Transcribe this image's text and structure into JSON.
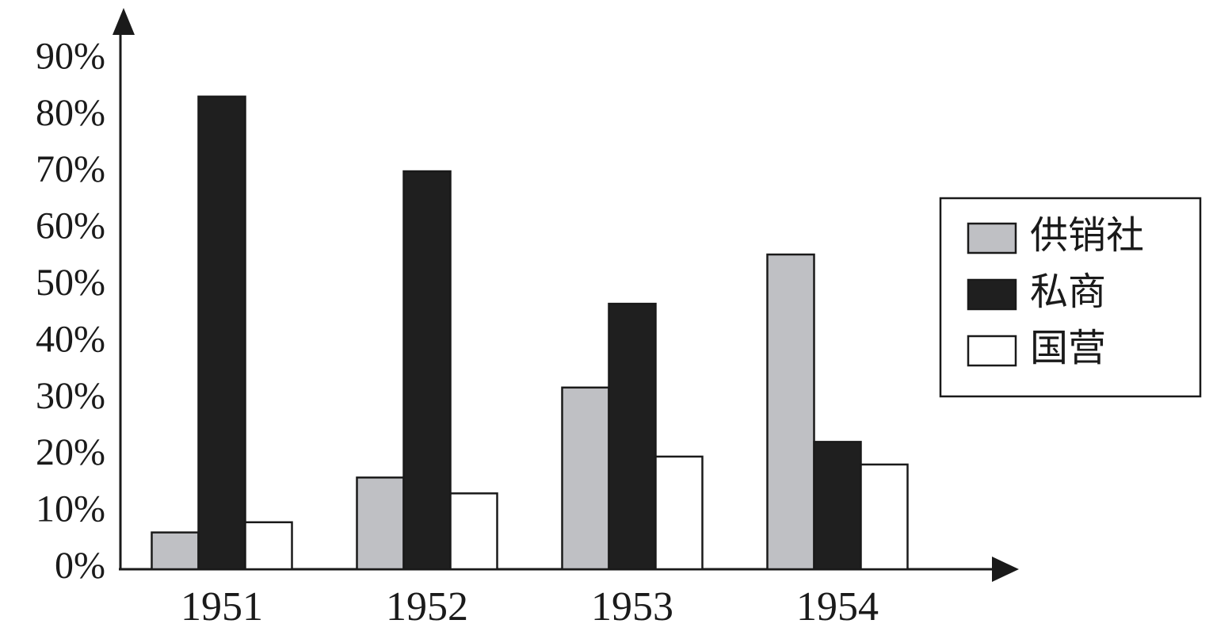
{
  "chart_data": {
    "type": "bar",
    "categories": [
      "1951",
      "1952",
      "1953",
      "1954"
    ],
    "series": [
      {
        "name": "供销社",
        "color": "#bfc0c4",
        "values": [
          6.5,
          16.2,
          32.1,
          55.6
        ]
      },
      {
        "name": "私商",
        "color": "#1f1f1f",
        "values": [
          83.5,
          70.3,
          46.9,
          22.5
        ]
      },
      {
        "name": "国营",
        "color": "#ffffff",
        "values": [
          8.3,
          13.4,
          19.9,
          18.5
        ]
      }
    ],
    "ylim": [
      0,
      98.5
    ],
    "yticks": [
      {
        "value": 0,
        "label": "0%"
      },
      {
        "value": 10,
        "label": "10%"
      },
      {
        "value": 20,
        "label": "20%"
      },
      {
        "value": 30,
        "label": "30%"
      },
      {
        "value": 40,
        "label": "40%"
      },
      {
        "value": 50,
        "label": "50%"
      },
      {
        "value": 60,
        "label": "60%"
      },
      {
        "value": 70,
        "label": "70%"
      },
      {
        "value": 80,
        "label": "80%"
      },
      {
        "value": 90,
        "label": "90%"
      }
    ],
    "grid": false,
    "legend": "right"
  }
}
